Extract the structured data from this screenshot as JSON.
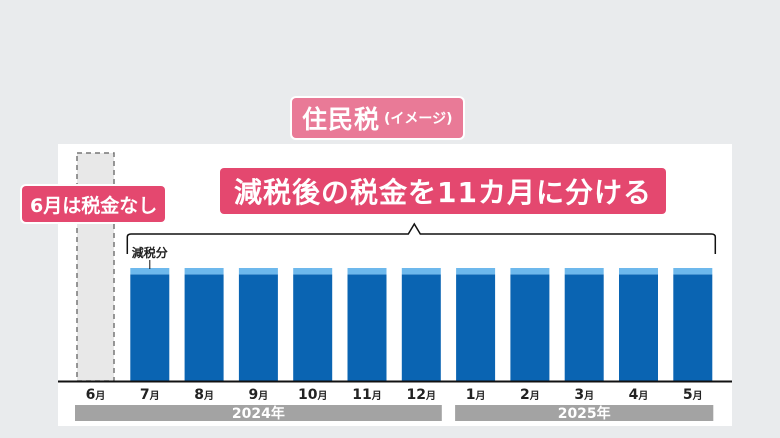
{
  "title": {
    "main": "住民税",
    "sub": "(イメージ)"
  },
  "banner": "減税後の税金を11カ月に分ける",
  "june_note": "6月は税金なし",
  "reduction_label": "減税分",
  "colors": {
    "bar": "#0a64b2",
    "reduction": "#6db8ec",
    "accent": "#e4486f",
    "year_band": "#a3a3a3",
    "background": "#e9ebed"
  },
  "chart_data": {
    "type": "bar",
    "categories": [
      {
        "num": "6",
        "unit": "月"
      },
      {
        "num": "7",
        "unit": "月"
      },
      {
        "num": "8",
        "unit": "月"
      },
      {
        "num": "9",
        "unit": "月"
      },
      {
        "num": "10",
        "unit": "月"
      },
      {
        "num": "11",
        "unit": "月"
      },
      {
        "num": "12",
        "unit": "月"
      },
      {
        "num": "1",
        "unit": "月"
      },
      {
        "num": "2",
        "unit": "月"
      },
      {
        "num": "3",
        "unit": "月"
      },
      {
        "num": "4",
        "unit": "月"
      },
      {
        "num": "5",
        "unit": "月"
      }
    ],
    "series": [
      {
        "values": [
          0,
          1,
          1,
          1,
          1,
          1,
          1,
          1,
          1,
          1,
          1,
          1
        ]
      },
      {
        "name": "減税分",
        "values": [
          0,
          0.06,
          0.06,
          0.06,
          0.06,
          0.06,
          0.06,
          0.06,
          0.06,
          0.06,
          0.06,
          0.06
        ]
      }
    ],
    "june_placeholder": true,
    "year_groups": [
      {
        "label": "2024年",
        "from": 0,
        "to": 6
      },
      {
        "label": "2025年",
        "from": 7,
        "to": 11
      }
    ]
  }
}
